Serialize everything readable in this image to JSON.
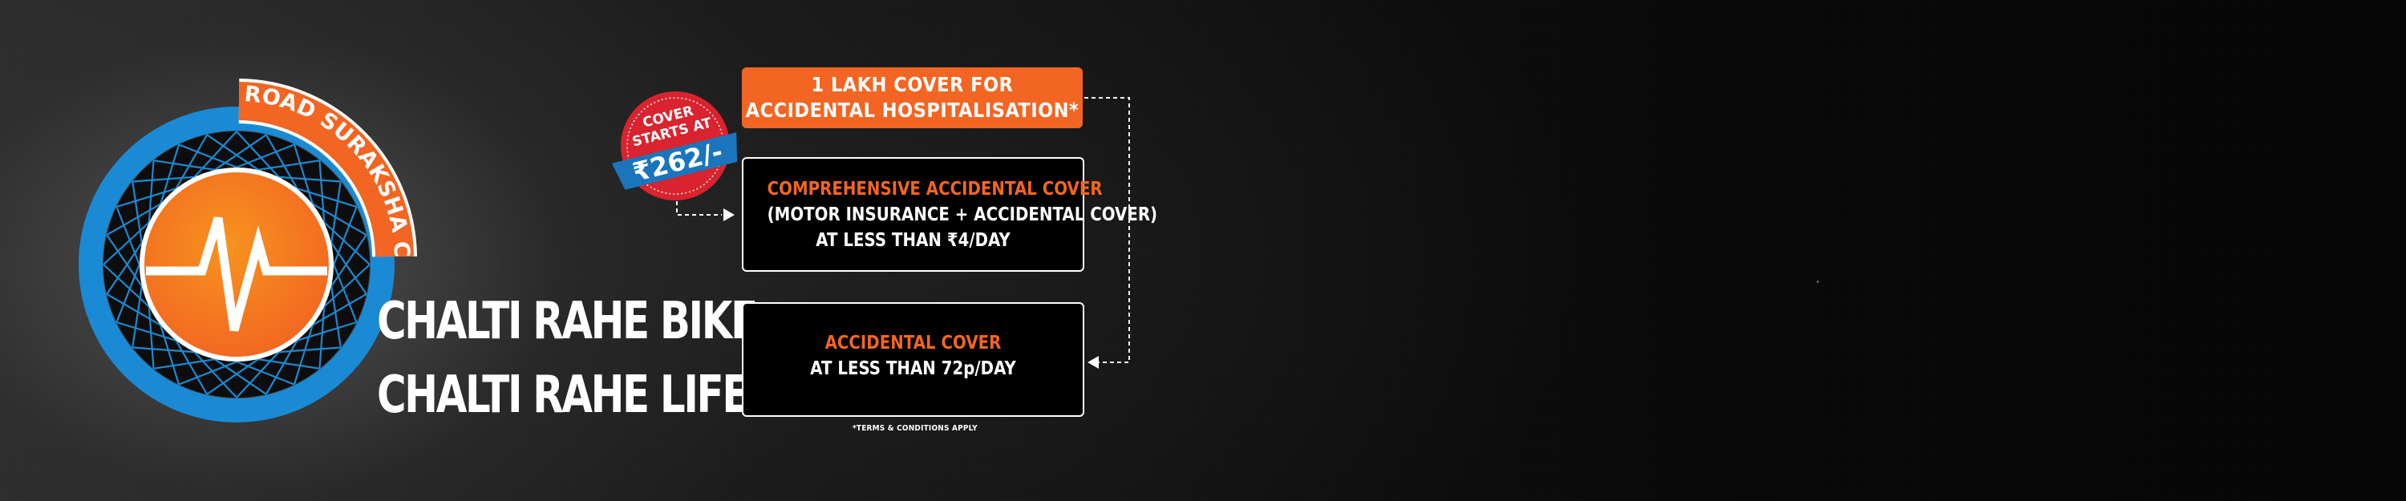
{
  "logo": {
    "arc_text": "ROAD SURAKSHA COVER",
    "icon": "heartbeat-wheel-icon",
    "colors": {
      "wheel": "#1a8ad4",
      "orange": "#f26522",
      "spokes": "#1a8ad4"
    }
  },
  "tagline": {
    "line1": "CHALTI RAHE BIKE",
    "line2": "CHALTI RAHE LIFE"
  },
  "badge": {
    "line1": "COVER",
    "line2": "STARTS AT",
    "price": "₹262/-",
    "colors": {
      "circle": "#d9232e",
      "ribbon": "#1b75bc"
    }
  },
  "box_top": {
    "line1": "1 LAKH COVER FOR",
    "line2": "ACCIDENTAL HOSPITALISATION*",
    "color": "#f26522"
  },
  "box_mid": {
    "title": "COMPREHENSIVE ACCIDENTAL COVER",
    "line2": "(MOTOR INSURANCE + ACCIDENTAL COVER)",
    "line3": "AT LESS THAN ₹4/DAY"
  },
  "box_low": {
    "title": "ACCIDENTAL COVER",
    "line2": "AT LESS THAN 72p/DAY"
  },
  "terms": "*TERMS & CONDITIONS APPLY"
}
